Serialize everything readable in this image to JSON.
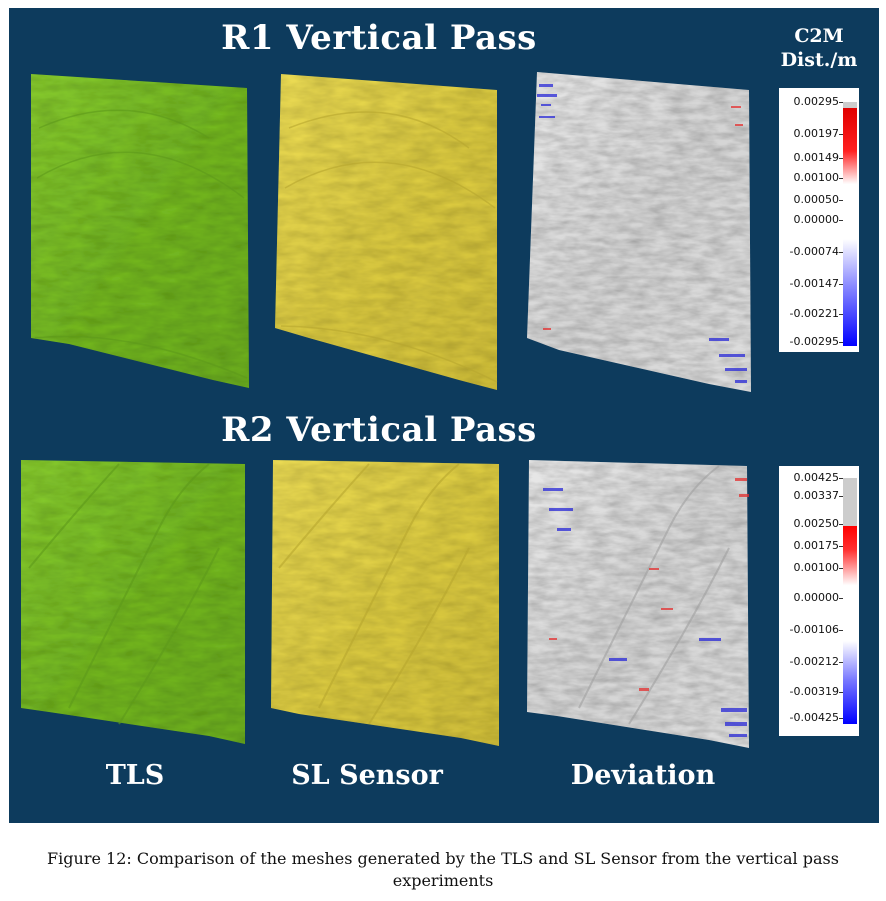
{
  "rows": [
    {
      "title": "R1 Vertical Pass"
    },
    {
      "title": "R2 Vertical Pass"
    }
  ],
  "columns": [
    {
      "label": "TLS"
    },
    {
      "label": "SL Sensor"
    },
    {
      "label": "Deviation"
    }
  ],
  "legend": {
    "title_line1": "C2M",
    "title_line2": "Dist./m"
  },
  "colorbars": [
    {
      "ticks": [
        "0.00295",
        "0.00197",
        "0.00149",
        "0.00100",
        "0.00050",
        "0.00000",
        "-0.00074",
        "-0.00147",
        "-0.00221",
        "-0.00295"
      ]
    },
    {
      "ticks": [
        "0.00425",
        "0.00337",
        "0.00250",
        "0.00175",
        "0.00100",
        "0.00000",
        "-0.00106",
        "-0.00212",
        "-0.00319",
        "-0.00425"
      ]
    }
  ],
  "colors": {
    "panel_background": "#0d3b5d",
    "tls_mesh": "#7dc22a",
    "sl_mesh": "#e2d24a",
    "deviation_mesh": "#dcdcdc",
    "positive": "#ff0000",
    "negative": "#0000ff"
  },
  "caption": "Figure 12: Comparison of the meshes generated by the TLS and SL Sensor from the vertical pass experiments"
}
